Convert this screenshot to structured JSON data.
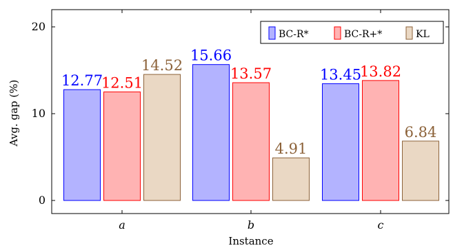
{
  "chart_data": {
    "type": "bar",
    "categories": [
      "a",
      "b",
      "c"
    ],
    "series": [
      {
        "name": "BC-R*",
        "values": [
          12.77,
          15.66,
          13.45
        ],
        "fill": "#b3b3ff",
        "stroke": "#0000ff",
        "label_color": "#0000ff"
      },
      {
        "name": "BC-R+*",
        "values": [
          12.51,
          13.57,
          13.82
        ],
        "fill": "#ffb3b3",
        "stroke": "#ff0000",
        "label_color": "#ff0000"
      },
      {
        "name": "KL",
        "values": [
          14.52,
          4.91,
          6.84
        ],
        "fill": "#ead8c4",
        "stroke": "#8c6239",
        "label_color": "#8c6239"
      }
    ],
    "data_labels": [
      [
        "12.77",
        "15.66",
        "13.45"
      ],
      [
        "12.51",
        "13.57",
        "13.82"
      ],
      [
        "14.52",
        "4.91",
        "6.84"
      ]
    ],
    "xlabel": "Instance",
    "ylabel": "Avg. gap (%)",
    "yticks": [
      0,
      10,
      20
    ],
    "ytick_labels": [
      "0",
      "10",
      "20"
    ],
    "ylim": [
      -1,
      22
    ],
    "legend_position": "top-right",
    "grid": false
  }
}
